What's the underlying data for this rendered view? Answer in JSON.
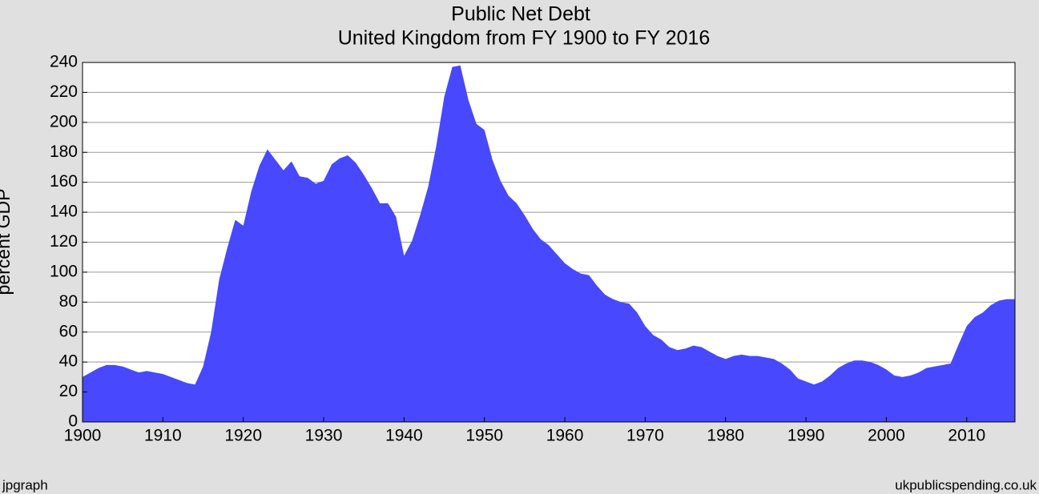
{
  "chart_data": {
    "type": "area",
    "title": "Public Net Debt",
    "subtitle": "United Kingdom from FY 1900 to FY 2016",
    "y_label": "percent GDP",
    "footer_left": "jpgraph",
    "footer_right": "ukpublicspending.co.uk",
    "x": [
      1900,
      1901,
      1902,
      1903,
      1904,
      1905,
      1906,
      1907,
      1908,
      1909,
      1910,
      1911,
      1912,
      1913,
      1914,
      1915,
      1916,
      1917,
      1918,
      1919,
      1920,
      1921,
      1922,
      1923,
      1924,
      1925,
      1926,
      1927,
      1928,
      1929,
      1930,
      1931,
      1932,
      1933,
      1934,
      1935,
      1936,
      1937,
      1938,
      1939,
      1940,
      1941,
      1942,
      1943,
      1944,
      1945,
      1946,
      1947,
      1948,
      1949,
      1950,
      1951,
      1952,
      1953,
      1954,
      1955,
      1956,
      1957,
      1958,
      1959,
      1960,
      1961,
      1962,
      1963,
      1964,
      1965,
      1966,
      1967,
      1968,
      1969,
      1970,
      1971,
      1972,
      1973,
      1974,
      1975,
      1976,
      1977,
      1978,
      1979,
      1980,
      1981,
      1982,
      1983,
      1984,
      1985,
      1986,
      1987,
      1988,
      1989,
      1990,
      1991,
      1992,
      1993,
      1994,
      1995,
      1996,
      1997,
      1998,
      1999,
      2000,
      2001,
      2002,
      2003,
      2004,
      2005,
      2006,
      2007,
      2008,
      2009,
      2010,
      2011,
      2012,
      2013,
      2014,
      2015,
      2016
    ],
    "values": [
      30,
      33,
      36,
      38,
      38,
      37,
      35,
      33,
      34,
      33,
      32,
      30,
      28,
      26,
      25,
      37,
      60,
      95,
      116,
      135,
      131,
      154,
      171,
      182,
      175,
      168,
      174,
      164,
      163,
      159,
      161,
      172,
      176,
      178,
      173,
      165,
      156,
      146,
      146,
      137,
      111,
      121,
      138,
      157,
      184,
      217,
      237,
      238,
      215,
      199,
      195,
      175,
      161,
      151,
      146,
      138,
      129,
      122,
      118,
      112,
      106,
      102,
      99,
      98,
      91,
      85,
      82,
      80,
      79,
      73,
      64,
      58,
      55,
      50,
      48,
      49,
      51,
      50,
      47,
      44,
      42,
      44,
      45,
      44,
      44,
      43,
      42,
      39,
      35,
      29,
      27,
      25,
      27,
      31,
      36,
      39,
      41,
      41,
      40,
      38,
      35,
      31,
      30,
      31,
      33,
      36,
      37,
      38,
      39,
      52,
      64,
      70,
      73,
      78,
      81,
      82,
      82
    ],
    "color": "#4848ff",
    "xlim": [
      1900,
      2016
    ],
    "xticks": [
      1900,
      1910,
      1920,
      1930,
      1940,
      1950,
      1960,
      1970,
      1980,
      1990,
      2000,
      2010
    ],
    "ylim": [
      0,
      240
    ],
    "yticks": [
      0,
      20,
      40,
      60,
      80,
      100,
      120,
      140,
      160,
      180,
      200,
      220,
      240
    ],
    "grid": true
  }
}
